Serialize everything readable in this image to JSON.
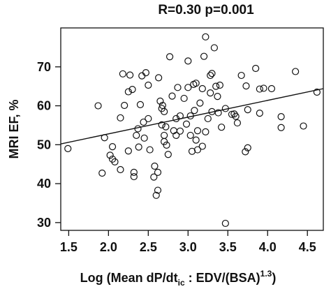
{
  "chart_data": {
    "type": "scatter",
    "title": "R=0.30 p=0.001",
    "xlabel": {
      "main": "Log (Mean dP/dt",
      "sub": "ic",
      "mid": " : EDV/(BSA)",
      "sup": "1.3",
      "end": ")"
    },
    "ylabel": "MRI EF, %",
    "xlim": [
      1.4,
      4.7
    ],
    "ylim": [
      28,
      80
    ],
    "xticks": [
      "1.5",
      "2.0",
      "2.5",
      "3.0",
      "3.5",
      "4.0",
      "4.5"
    ],
    "yticks": [
      "30",
      "40",
      "50",
      "60",
      "70"
    ],
    "grid": false,
    "fit_line": {
      "x": [
        1.4,
        4.7
      ],
      "y": [
        50.2,
        64.4
      ]
    },
    "points": [
      {
        "x": 1.49,
        "y": 49.0
      },
      {
        "x": 1.87,
        "y": 60.0
      },
      {
        "x": 1.92,
        "y": 42.7
      },
      {
        "x": 1.95,
        "y": 51.8
      },
      {
        "x": 2.02,
        "y": 47.3
      },
      {
        "x": 2.05,
        "y": 49.5
      },
      {
        "x": 2.05,
        "y": 46.3
      },
      {
        "x": 2.08,
        "y": 45.6
      },
      {
        "x": 2.15,
        "y": 56.9
      },
      {
        "x": 2.15,
        "y": 43.6
      },
      {
        "x": 2.18,
        "y": 68.2
      },
      {
        "x": 2.2,
        "y": 60.1
      },
      {
        "x": 2.25,
        "y": 63.6
      },
      {
        "x": 2.25,
        "y": 48.4
      },
      {
        "x": 2.27,
        "y": 67.9
      },
      {
        "x": 2.3,
        "y": 64.2
      },
      {
        "x": 2.32,
        "y": 42.9
      },
      {
        "x": 2.32,
        "y": 41.8
      },
      {
        "x": 2.35,
        "y": 52.4
      },
      {
        "x": 2.37,
        "y": 54.1
      },
      {
        "x": 2.38,
        "y": 49.4
      },
      {
        "x": 2.4,
        "y": 60.3
      },
      {
        "x": 2.42,
        "y": 67.7
      },
      {
        "x": 2.44,
        "y": 55.8
      },
      {
        "x": 2.45,
        "y": 51.7
      },
      {
        "x": 2.47,
        "y": 68.5
      },
      {
        "x": 2.5,
        "y": 65.3
      },
      {
        "x": 2.5,
        "y": 56.7
      },
      {
        "x": 2.52,
        "y": 48.7
      },
      {
        "x": 2.57,
        "y": 41.7
      },
      {
        "x": 2.58,
        "y": 44.5
      },
      {
        "x": 2.6,
        "y": 37.0
      },
      {
        "x": 2.62,
        "y": 42.9
      },
      {
        "x": 2.62,
        "y": 38.3
      },
      {
        "x": 2.63,
        "y": 67.2
      },
      {
        "x": 2.65,
        "y": 61.2
      },
      {
        "x": 2.67,
        "y": 55.1
      },
      {
        "x": 2.67,
        "y": 59.3
      },
      {
        "x": 2.68,
        "y": 60.1
      },
      {
        "x": 2.7,
        "y": 58.5
      },
      {
        "x": 2.7,
        "y": 52.4
      },
      {
        "x": 2.7,
        "y": 50.8
      },
      {
        "x": 2.72,
        "y": 54.6
      },
      {
        "x": 2.73,
        "y": 49.9
      },
      {
        "x": 2.75,
        "y": 47.5
      },
      {
        "x": 2.77,
        "y": 72.6
      },
      {
        "x": 2.8,
        "y": 62.5
      },
      {
        "x": 2.82,
        "y": 53.6
      },
      {
        "x": 2.85,
        "y": 56.7
      },
      {
        "x": 2.85,
        "y": 52.4
      },
      {
        "x": 2.87,
        "y": 64.7
      },
      {
        "x": 2.9,
        "y": 57.4
      },
      {
        "x": 2.9,
        "y": 53.5
      },
      {
        "x": 2.95,
        "y": 61.9
      },
      {
        "x": 2.98,
        "y": 55.3
      },
      {
        "x": 3.0,
        "y": 71.5
      },
      {
        "x": 3.0,
        "y": 64.7
      },
      {
        "x": 3.03,
        "y": 57.4
      },
      {
        "x": 3.03,
        "y": 52.4
      },
      {
        "x": 3.05,
        "y": 48.3
      },
      {
        "x": 3.07,
        "y": 65.5
      },
      {
        "x": 3.08,
        "y": 58.8
      },
      {
        "x": 3.1,
        "y": 65.8
      },
      {
        "x": 3.1,
        "y": 51.2
      },
      {
        "x": 3.12,
        "y": 53.6
      },
      {
        "x": 3.12,
        "y": 48.7
      },
      {
        "x": 3.15,
        "y": 60.7
      },
      {
        "x": 3.18,
        "y": 64.4
      },
      {
        "x": 3.18,
        "y": 49.6
      },
      {
        "x": 3.2,
        "y": 72.7
      },
      {
        "x": 3.22,
        "y": 77.7
      },
      {
        "x": 3.22,
        "y": 53.3
      },
      {
        "x": 3.25,
        "y": 56.7
      },
      {
        "x": 3.28,
        "y": 67.8
      },
      {
        "x": 3.28,
        "y": 63.3
      },
      {
        "x": 3.3,
        "y": 68.3
      },
      {
        "x": 3.3,
        "y": 58.5
      },
      {
        "x": 3.33,
        "y": 74.9
      },
      {
        "x": 3.35,
        "y": 65.0
      },
      {
        "x": 3.37,
        "y": 62.4
      },
      {
        "x": 3.38,
        "y": 58.2
      },
      {
        "x": 3.4,
        "y": 65.3
      },
      {
        "x": 3.42,
        "y": 54.5
      },
      {
        "x": 3.47,
        "y": 59.3
      },
      {
        "x": 3.47,
        "y": 29.8
      },
      {
        "x": 3.55,
        "y": 57.8
      },
      {
        "x": 3.58,
        "y": 57.9
      },
      {
        "x": 3.6,
        "y": 57.3
      },
      {
        "x": 3.62,
        "y": 55.6
      },
      {
        "x": 3.67,
        "y": 67.8
      },
      {
        "x": 3.72,
        "y": 48.2
      },
      {
        "x": 3.73,
        "y": 65.1
      },
      {
        "x": 3.75,
        "y": 49.2
      },
      {
        "x": 3.75,
        "y": 59.0
      },
      {
        "x": 3.85,
        "y": 69.6
      },
      {
        "x": 3.9,
        "y": 58.1
      },
      {
        "x": 3.9,
        "y": 64.3
      },
      {
        "x": 3.95,
        "y": 64.5
      },
      {
        "x": 4.05,
        "y": 64.4
      },
      {
        "x": 4.17,
        "y": 57.2
      },
      {
        "x": 4.17,
        "y": 54.4
      },
      {
        "x": 4.35,
        "y": 68.8
      },
      {
        "x": 4.45,
        "y": 54.8
      },
      {
        "x": 4.62,
        "y": 63.5
      }
    ]
  }
}
